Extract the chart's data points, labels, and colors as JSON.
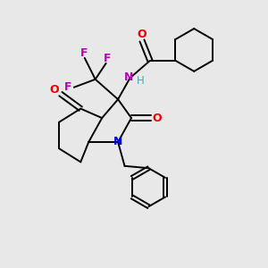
{
  "bg_color": "#e8e8e8",
  "atom_colors": {
    "C": "#000000",
    "N_blue": "#0000ee",
    "N_amide": "#bb00bb",
    "O": "#ee0000",
    "F": "#bb00bb",
    "H": "#44aaaa"
  }
}
